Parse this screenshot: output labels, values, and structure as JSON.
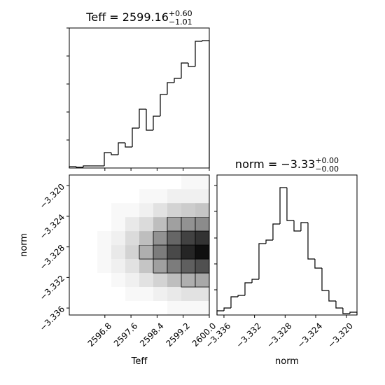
{
  "chart_data": [
    {
      "type": "histogram",
      "title": {
        "text": "Teff = 2599.16",
        "sup": "+0.60",
        "sub": "−1.01"
      },
      "bins": [
        2595.71,
        2595.925,
        2596.139,
        2596.354,
        2596.568,
        2596.783,
        2596.997,
        2597.212,
        2597.426,
        2597.641,
        2597.855,
        2598.07,
        2598.284,
        2598.499,
        2598.713,
        2598.928,
        2599.142,
        2599.357,
        2599.571,
        2599.786,
        2600.0
      ],
      "counts": [
        2,
        1,
        3,
        3,
        3,
        22,
        19,
        36,
        30,
        57,
        84,
        54,
        74,
        105,
        122,
        128,
        150,
        145,
        181,
        182
      ],
      "xlim": [
        2595.71,
        2600.0
      ],
      "ylim": [
        0,
        200
      ],
      "yticks": [
        40,
        80,
        120,
        160,
        200
      ],
      "color": "#000000"
    },
    {
      "type": "hist2d",
      "xlabel": "Teff",
      "ylabel": "norm",
      "xbins": [
        2595.71,
        2596.139,
        2596.568,
        2596.997,
        2597.426,
        2597.855,
        2598.284,
        2598.713,
        2599.142,
        2599.571,
        2600.0
      ],
      "ybins": [
        -3.33691,
        -3.33508,
        -3.33325,
        -3.33142,
        -3.32959,
        -3.32776,
        -3.32593,
        -3.3241,
        -3.32227,
        -3.32044,
        -3.3186
      ],
      "counts": [
        [
          0,
          0,
          0,
          0,
          0,
          0,
          0,
          1,
          1,
          1
        ],
        [
          0,
          0,
          0,
          0,
          1,
          1,
          2,
          3,
          4,
          4
        ],
        [
          0,
          0,
          0,
          1,
          2,
          4,
          6,
          9,
          11,
          12
        ],
        [
          0,
          0,
          1,
          2,
          4,
          8,
          13,
          18,
          22,
          24
        ],
        [
          0,
          0,
          1,
          3,
          6,
          11,
          18,
          25,
          30,
          33
        ],
        [
          0,
          0,
          1,
          2,
          5,
          9,
          15,
          21,
          26,
          28
        ],
        [
          0,
          0,
          0,
          1,
          3,
          5,
          9,
          13,
          15,
          16
        ],
        [
          0,
          0,
          0,
          1,
          1,
          2,
          4,
          6,
          7,
          8
        ],
        [
          0,
          0,
          0,
          0,
          0,
          1,
          1,
          2,
          2,
          2
        ],
        [
          0,
          0,
          0,
          0,
          0,
          0,
          0,
          0,
          1,
          1
        ]
      ],
      "xlim": [
        2595.71,
        2600.0
      ],
      "ylim": [
        -3.33691,
        -3.3186
      ],
      "xticks": [
        2596.8,
        2597.6,
        2598.4,
        2599.2,
        {
          "value": 2600,
          "label": "2600.0"
        }
      ],
      "yticks": [
        {
          "value": -3.32,
          "label": "−3.320"
        },
        {
          "value": -3.324,
          "label": "−3.324"
        },
        {
          "value": -3.328,
          "label": "−3.328"
        },
        {
          "value": -3.332,
          "label": "−3.332"
        },
        {
          "value": -3.336,
          "label": "−3.336"
        }
      ]
    },
    {
      "type": "histogram",
      "title": {
        "text": "norm = −3.33",
        "sup": "+0.00",
        "sub": "−0.00"
      },
      "xlabel": "norm",
      "bins": [
        -3.33691,
        -3.33599,
        -3.33508,
        -3.33416,
        -3.33325,
        -3.33233,
        -3.33142,
        -3.3305,
        -3.32959,
        -3.32867,
        -3.32776,
        -3.32684,
        -3.32593,
        -3.32501,
        -3.3241,
        -3.32318,
        -3.32227,
        -3.32135,
        -3.32044,
        -3.31952,
        -3.3186
      ],
      "counts": [
        6,
        10,
        26,
        28,
        46,
        51,
        102,
        107,
        130,
        182,
        135,
        120,
        132,
        80,
        67,
        35,
        20,
        10,
        2,
        4
      ],
      "xlim": [
        -3.33691,
        -3.3186
      ],
      "ylim": [
        0,
        200
      ],
      "yticks": [
        36,
        73,
        110,
        148,
        185
      ],
      "xticks": [
        {
          "value": -3.336,
          "label": "−3.336"
        },
        {
          "value": -3.332,
          "label": "−3.332"
        },
        {
          "value": -3.328,
          "label": "−3.328"
        },
        {
          "value": -3.324,
          "label": "−3.324"
        },
        {
          "value": -3.32,
          "label": "−3.320"
        }
      ],
      "color": "#000000"
    }
  ]
}
